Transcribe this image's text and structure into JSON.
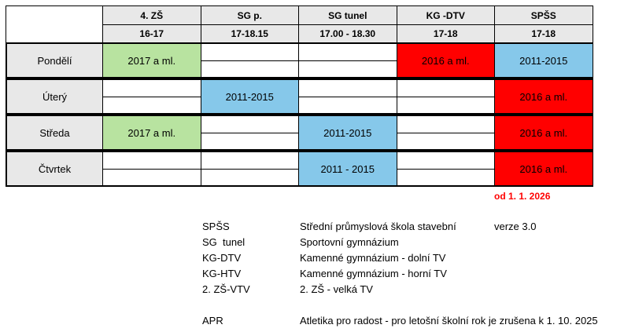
{
  "header": {
    "venues": [
      "4. ZŠ",
      "SG p.",
      "SG tunel",
      "KG -DTV",
      "SPŠS"
    ],
    "times": [
      "16-17",
      "17-18.15",
      "17.00 - 18.30",
      "17-18",
      "17-18"
    ]
  },
  "rows": [
    {
      "day": "Pondělí",
      "cells": [
        {
          "text": "2017 a ml.",
          "color": "#b8e3a0"
        },
        null,
        null,
        {
          "text": "2016 a ml.",
          "color": "#ff0000"
        },
        {
          "text": "2011-2015",
          "color": "#86c8ea"
        }
      ]
    },
    {
      "day": "Úterý",
      "cells": [
        null,
        {
          "text": "2011-2015",
          "color": "#86c8ea"
        },
        null,
        null,
        {
          "text": "2016 a ml.",
          "color": "#ff0000"
        }
      ]
    },
    {
      "day": "Středa",
      "cells": [
        {
          "text": "2017 a ml.",
          "color": "#b8e3a0"
        },
        null,
        {
          "text": "2011-2015",
          "color": "#86c8ea"
        },
        null,
        {
          "text": "2016 a ml.",
          "color": "#ff0000"
        }
      ]
    },
    {
      "day": "Čtvrtek",
      "cells": [
        null,
        null,
        {
          "text": "2011 - 2015",
          "color": "#86c8ea"
        },
        null,
        {
          "text": "2016 a ml.",
          "color": "#ff0000"
        }
      ]
    }
  ],
  "spss_note": "od 1. 1. 2026",
  "legend": [
    {
      "abbr": "SPŠS",
      "name": "Střední průmyslová škola stavební"
    },
    {
      "abbr": "SG  tunel",
      "name": "Sportovní gymnázium"
    },
    {
      "abbr": "KG-DTV",
      "name": "Kamenné gymnázium - dolní TV"
    },
    {
      "abbr": "KG-HTV",
      "name": "Kamenné gymnázium - horní TV"
    },
    {
      "abbr": "2. ZŠ-VTV",
      "name": "2. ZŠ - velká TV"
    }
  ],
  "version": "verze 3.0",
  "notice": {
    "abbr": "APR",
    "text": "Atletika pro radost - pro letošní školní rok je zrušena k 1. 10. 2025"
  }
}
